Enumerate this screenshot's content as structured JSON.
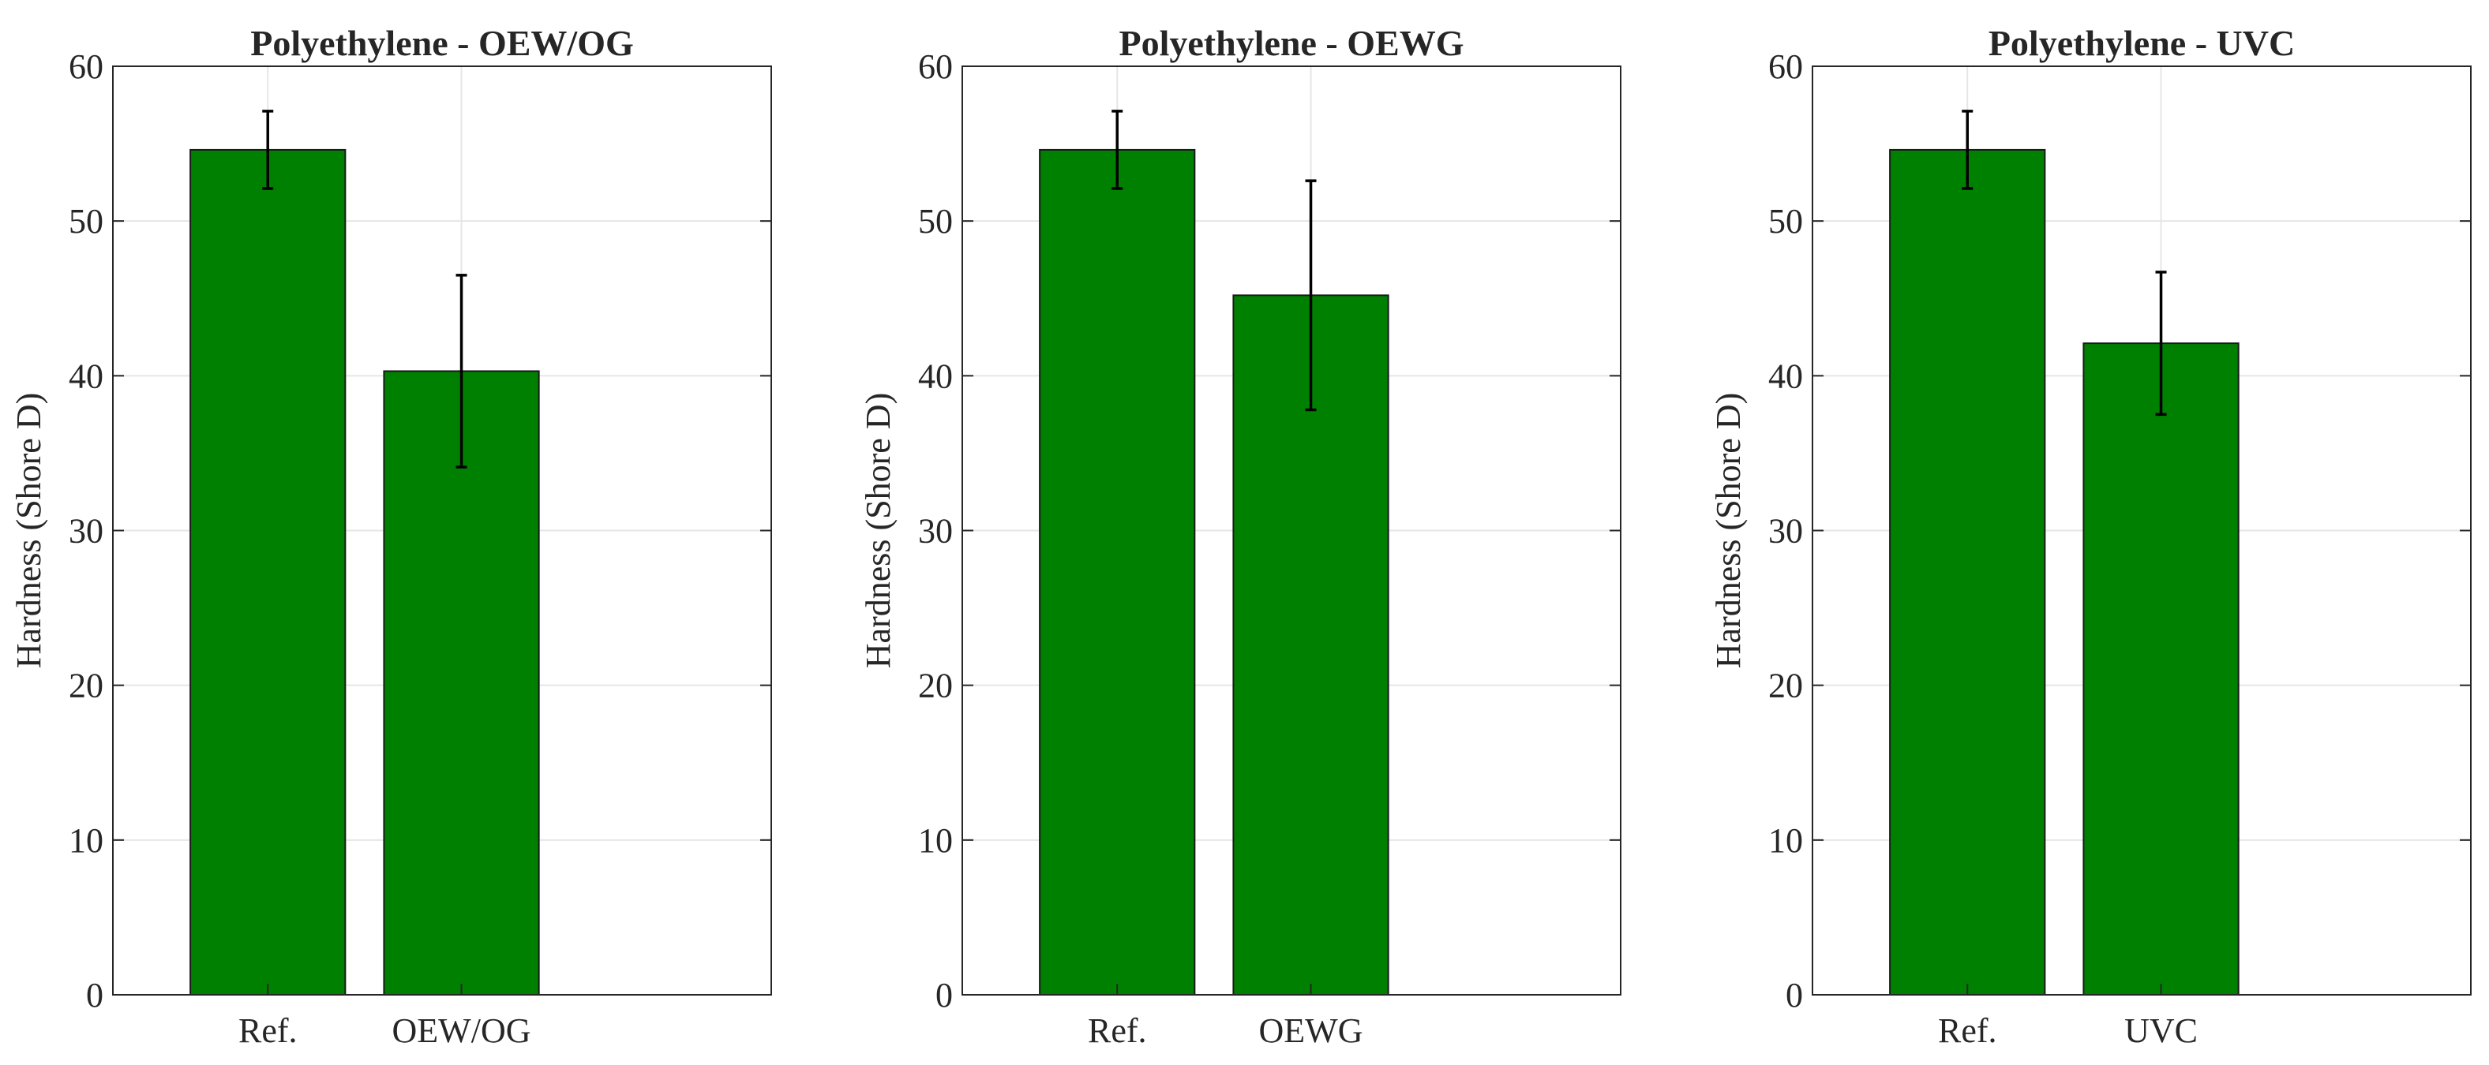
{
  "figure": {
    "background": "#ffffff"
  },
  "chart_data": [
    {
      "type": "bar",
      "title": "Polyethylene - OEW/OG",
      "xlabel": "",
      "ylabel": "Hardness (Shore D)",
      "categories": [
        "Ref.",
        "OEW/OG"
      ],
      "values": [
        54.6,
        40.3
      ],
      "error_low": [
        52.1,
        34.1
      ],
      "error_high": [
        57.1,
        46.5
      ],
      "ylim": [
        0,
        60
      ],
      "yticks": [
        0,
        10,
        20,
        30,
        40,
        50,
        60
      ],
      "grid": true,
      "bar_color": "#008000"
    },
    {
      "type": "bar",
      "title": "Polyethylene - OEWG",
      "xlabel": "",
      "ylabel": "Hardness (Shore D)",
      "categories": [
        "Ref.",
        "OEWG"
      ],
      "values": [
        54.6,
        45.2
      ],
      "error_low": [
        52.1,
        37.8
      ],
      "error_high": [
        57.1,
        52.6
      ],
      "ylim": [
        0,
        60
      ],
      "yticks": [
        0,
        10,
        20,
        30,
        40,
        50,
        60
      ],
      "grid": true,
      "bar_color": "#008000"
    },
    {
      "type": "bar",
      "title": "Polyethylene - UVC",
      "xlabel": "",
      "ylabel": "Hardness (Shore D)",
      "categories": [
        "Ref.",
        "UVC"
      ],
      "values": [
        54.6,
        42.1
      ],
      "error_low": [
        52.1,
        37.5
      ],
      "error_high": [
        57.1,
        46.7
      ],
      "ylim": [
        0,
        60
      ],
      "yticks": [
        0,
        10,
        20,
        30,
        40,
        50,
        60
      ],
      "grid": true,
      "bar_color": "#008000"
    }
  ]
}
